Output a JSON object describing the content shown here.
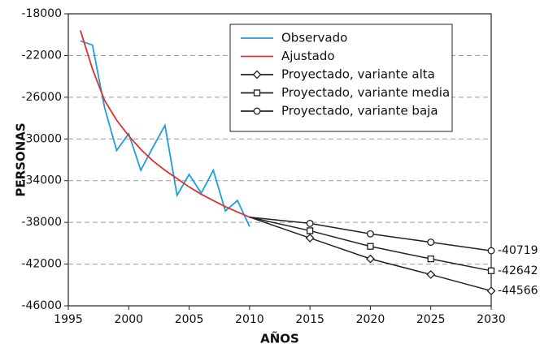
{
  "chart_data": {
    "type": "line",
    "xlabel": "AÑOS",
    "ylabel": "PERSONAS",
    "xlim": [
      1995,
      2030
    ],
    "ylim": [
      -46000,
      -18000
    ],
    "xticks": [
      1995,
      2000,
      2005,
      2010,
      2015,
      2020,
      2025,
      2030
    ],
    "yticks": [
      -18000,
      -22000,
      -26000,
      -30000,
      -34000,
      -38000,
      -42000,
      -46000
    ],
    "grid": true,
    "legend": "upper right",
    "series": [
      {
        "name": "Observado",
        "color": "#1e9fdc",
        "marker": "none",
        "x": [
          1996,
          1997,
          1998,
          1999,
          2000,
          2001,
          2002,
          2003,
          2004,
          2005,
          2006,
          2007,
          2008,
          2009,
          2010
        ],
        "values": [
          -20600,
          -21000,
          -27000,
          -31100,
          -29500,
          -33000,
          -30800,
          -28700,
          -35400,
          -33400,
          -35200,
          -33000,
          -36900,
          -35900,
          -38400
        ]
      },
      {
        "name": "Ajustado",
        "color": "#e03030",
        "marker": "none",
        "x": [
          1996,
          1997,
          1998,
          1999,
          2000,
          2001,
          2002,
          2003,
          2004,
          2005,
          2006,
          2007,
          2008,
          2009,
          2010
        ],
        "values": [
          -19600,
          -23300,
          -26300,
          -28200,
          -29700,
          -31000,
          -32100,
          -33000,
          -33800,
          -34600,
          -35300,
          -35900,
          -36500,
          -37000,
          -37500
        ]
      },
      {
        "name": "Proyectado, variante alta",
        "color": "#222222",
        "marker": "diamond",
        "x": [
          2010,
          2015,
          2020,
          2025,
          2030
        ],
        "values": [
          -37500,
          -39500,
          -41500,
          -43000,
          -44566
        ]
      },
      {
        "name": "Proyectado, variante media",
        "color": "#222222",
        "marker": "square",
        "x": [
          2010,
          2015,
          2020,
          2025,
          2030
        ],
        "values": [
          -37500,
          -38800,
          -40300,
          -41500,
          -42642
        ]
      },
      {
        "name": "Proyectado, variante baja",
        "color": "#222222",
        "marker": "circle",
        "x": [
          2010,
          2015,
          2020,
          2025,
          2030
        ],
        "values": [
          -37500,
          -38100,
          -39100,
          -39900,
          -40719
        ]
      }
    ]
  }
}
